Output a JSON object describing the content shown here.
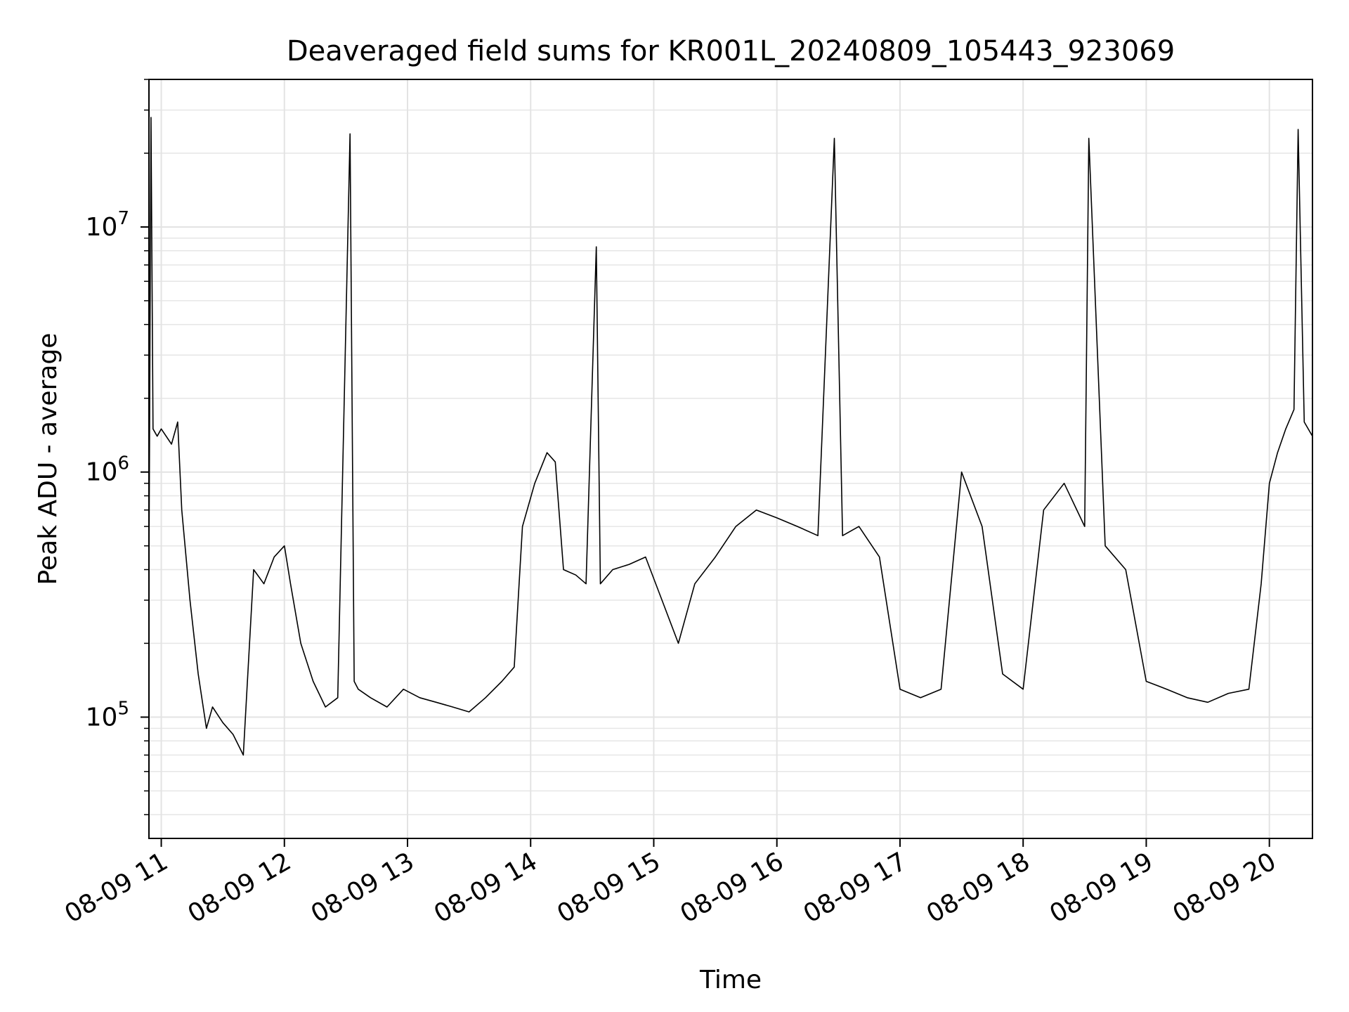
{
  "chart_data": {
    "type": "line",
    "title": "Deaveraged field sums for KR001L_20240809_105443_923069",
    "xlabel": "Time",
    "ylabel": "Peak ADU - average",
    "yscale": "log",
    "ylim": [
      32000,
      40000000
    ],
    "xlim": [
      "2024-08-09 10:54",
      "2024-08-09 20:21"
    ],
    "x_ticks": [
      {
        "value": "2024-08-09 11:00",
        "label": "08-09 11"
      },
      {
        "value": "2024-08-09 12:00",
        "label": "08-09 12"
      },
      {
        "value": "2024-08-09 13:00",
        "label": "08-09 13"
      },
      {
        "value": "2024-08-09 14:00",
        "label": "08-09 14"
      },
      {
        "value": "2024-08-09 15:00",
        "label": "08-09 15"
      },
      {
        "value": "2024-08-09 16:00",
        "label": "08-09 16"
      },
      {
        "value": "2024-08-09 17:00",
        "label": "08-09 17"
      },
      {
        "value": "2024-08-09 18:00",
        "label": "08-09 18"
      },
      {
        "value": "2024-08-09 19:00",
        "label": "08-09 19"
      },
      {
        "value": "2024-08-09 20:00",
        "label": "08-09 20"
      }
    ],
    "y_ticks": [
      {
        "value": 100000,
        "base": "10",
        "exp": "5"
      },
      {
        "value": 1000000,
        "base": "10",
        "exp": "6"
      },
      {
        "value": 10000000,
        "base": "10",
        "exp": "7"
      }
    ],
    "grid": true,
    "grid_minor": true,
    "line_color": "#000000",
    "series": [
      {
        "x": [
          "2024-08-09 10:54",
          "2024-08-09 10:55",
          "2024-08-09 10:56",
          "2024-08-09 10:58",
          "2024-08-09 11:00",
          "2024-08-09 11:05",
          "2024-08-09 11:08",
          "2024-08-09 11:10",
          "2024-08-09 11:14",
          "2024-08-09 11:18",
          "2024-08-09 11:22",
          "2024-08-09 11:25",
          "2024-08-09 11:30",
          "2024-08-09 11:35",
          "2024-08-09 11:40",
          "2024-08-09 11:45",
          "2024-08-09 11:50",
          "2024-08-09 11:55",
          "2024-08-09 12:00",
          "2024-08-09 12:03",
          "2024-08-09 12:08",
          "2024-08-09 12:14",
          "2024-08-09 12:20",
          "2024-08-09 12:26",
          "2024-08-09 12:32",
          "2024-08-09 12:34",
          "2024-08-09 12:36",
          "2024-08-09 12:42",
          "2024-08-09 12:50",
          "2024-08-09 12:58",
          "2024-08-09 13:06",
          "2024-08-09 13:14",
          "2024-08-09 13:22",
          "2024-08-09 13:30",
          "2024-08-09 13:38",
          "2024-08-09 13:46",
          "2024-08-09 13:52",
          "2024-08-09 13:56",
          "2024-08-09 14:02",
          "2024-08-09 14:08",
          "2024-08-09 14:12",
          "2024-08-09 14:16",
          "2024-08-09 14:22",
          "2024-08-09 14:27",
          "2024-08-09 14:32",
          "2024-08-09 14:34",
          "2024-08-09 14:40",
          "2024-08-09 14:48",
          "2024-08-09 14:56",
          "2024-08-09 15:04",
          "2024-08-09 15:12",
          "2024-08-09 15:20",
          "2024-08-09 15:30",
          "2024-08-09 15:40",
          "2024-08-09 15:50",
          "2024-08-09 16:00",
          "2024-08-09 16:10",
          "2024-08-09 16:20",
          "2024-08-09 16:28",
          "2024-08-09 16:32",
          "2024-08-09 16:40",
          "2024-08-09 16:50",
          "2024-08-09 17:00",
          "2024-08-09 17:10",
          "2024-08-09 17:20",
          "2024-08-09 17:30",
          "2024-08-09 17:40",
          "2024-08-09 17:50",
          "2024-08-09 18:00",
          "2024-08-09 18:10",
          "2024-08-09 18:20",
          "2024-08-09 18:30",
          "2024-08-09 18:32",
          "2024-08-09 18:40",
          "2024-08-09 18:50",
          "2024-08-09 19:00",
          "2024-08-09 19:10",
          "2024-08-09 19:20",
          "2024-08-09 19:30",
          "2024-08-09 19:40",
          "2024-08-09 19:50",
          "2024-08-09 19:56",
          "2024-08-09 20:00",
          "2024-08-09 20:04",
          "2024-08-09 20:08",
          "2024-08-09 20:12",
          "2024-08-09 20:14",
          "2024-08-09 20:17",
          "2024-08-09 20:21"
        ],
        "y": [
          400000,
          28000000,
          1500000,
          1400000,
          1500000,
          1300000,
          1600000,
          700000,
          300000,
          150000,
          90000,
          110000,
          95000,
          85000,
          70000,
          400000,
          350000,
          450000,
          500000,
          350000,
          200000,
          140000,
          110000,
          120000,
          24000000,
          140000,
          130000,
          120000,
          110000,
          130000,
          120000,
          115000,
          110000,
          105000,
          120000,
          140000,
          160000,
          600000,
          900000,
          1200000,
          1100000,
          400000,
          380000,
          350000,
          8300000,
          350000,
          400000,
          420000,
          450000,
          300000,
          200000,
          350000,
          450000,
          600000,
          700000,
          650000,
          600000,
          550000,
          23000000,
          550000,
          600000,
          450000,
          130000,
          120000,
          130000,
          1000000,
          600000,
          150000,
          130000,
          700000,
          900000,
          600000,
          23000000,
          500000,
          400000,
          140000,
          130000,
          120000,
          115000,
          125000,
          130000,
          350000,
          900000,
          1200000,
          1500000,
          1800000,
          25000000,
          1600000,
          1400000
        ]
      }
    ]
  }
}
